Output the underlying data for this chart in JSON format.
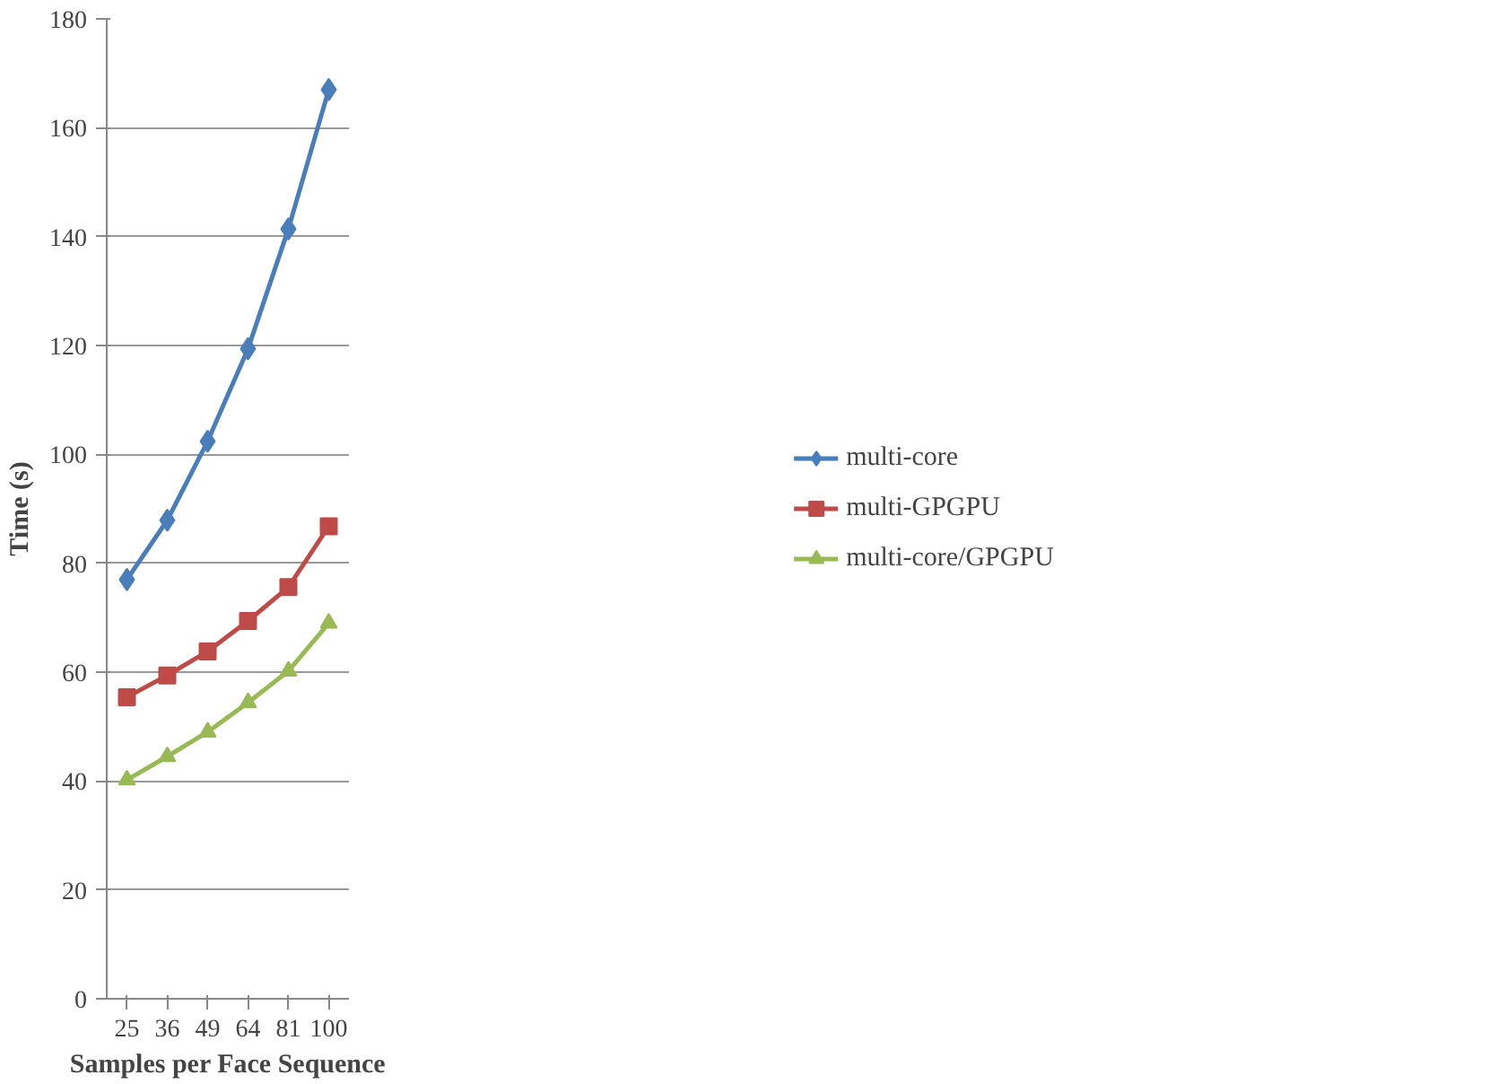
{
  "chart_data": {
    "type": "line",
    "xlabel": "Samples per Face Sequence",
    "ylabel": "Time (s)",
    "categories": [
      "25",
      "36",
      "49",
      "64",
      "81",
      "100"
    ],
    "series": [
      {
        "name": "multi-core",
        "color": "#4a7ebb",
        "marker": "diamond",
        "values": [
          77.0,
          87.9,
          102.4,
          119.4,
          141.4,
          167.0
        ]
      },
      {
        "name": "multi-GPGPU",
        "color": "#be4b48",
        "marker": "square",
        "values": [
          55.4,
          59.4,
          63.8,
          69.4,
          75.6,
          86.8
        ]
      },
      {
        "name": "multi-core/GPGPU",
        "color": "#98b954",
        "marker": "triangle",
        "values": [
          40.2,
          44.5,
          49.0,
          54.4,
          60.2,
          69.0
        ]
      }
    ],
    "ylim": [
      0,
      180
    ],
    "yticks": [
      0,
      20,
      40,
      60,
      80,
      100,
      120,
      140,
      160,
      180
    ],
    "grid": "y",
    "legend": "right",
    "line_style": "solid"
  }
}
